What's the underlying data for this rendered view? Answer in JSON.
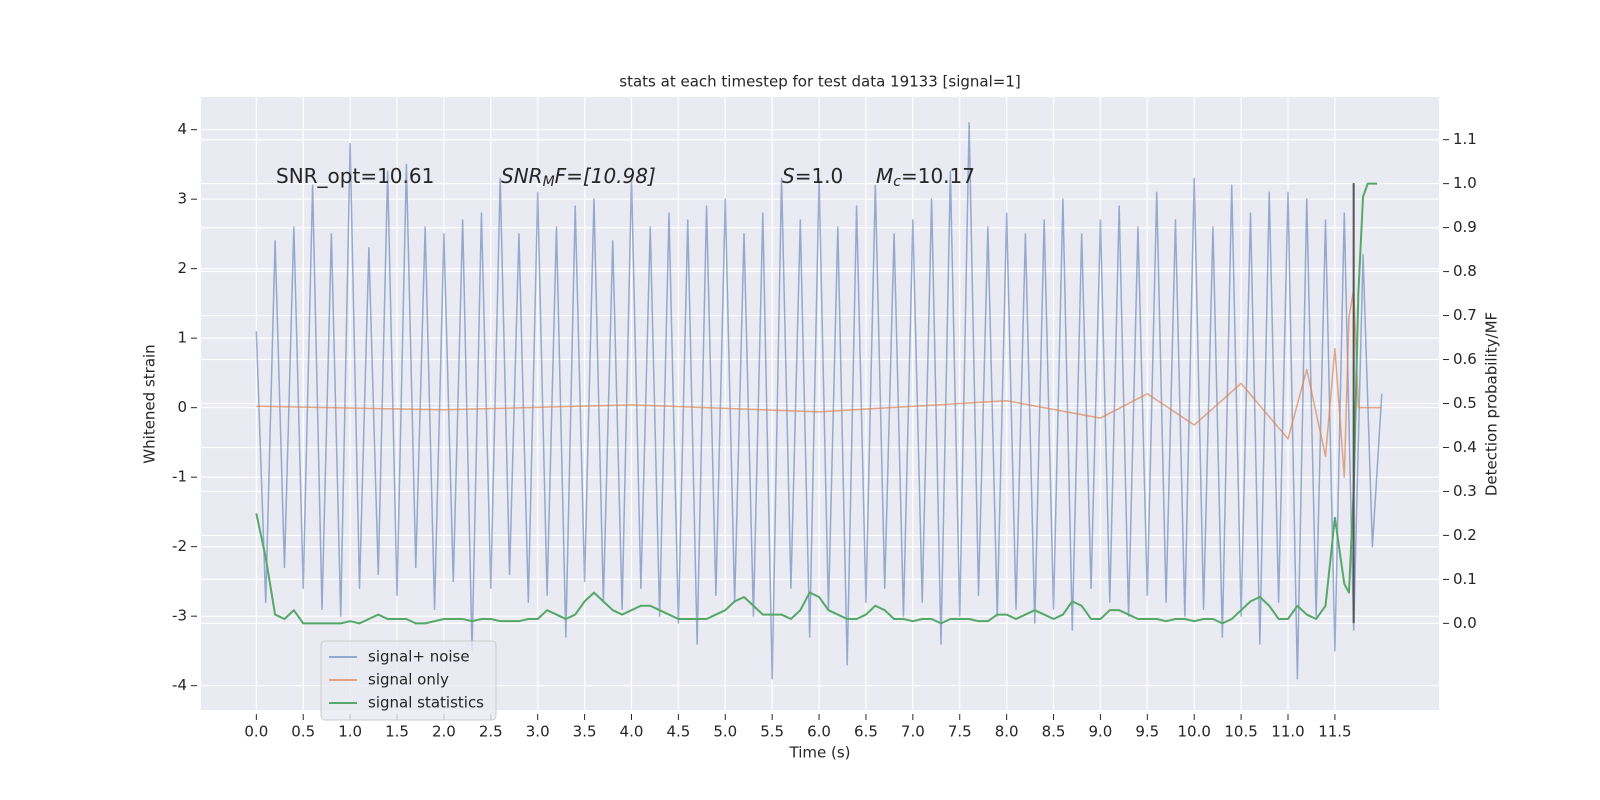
{
  "chart_data": {
    "type": "line",
    "title": "stats at each timestep for test data 19133 [signal=1]",
    "xlabel": "Time (s)",
    "ylabel": "Whitened strain",
    "y2label": "Detection probability/MF",
    "xlim": [
      -0.59,
      12.61
    ],
    "ylim": [
      -4.35,
      4.47
    ],
    "y2lim": [
      -0.197,
      1.197
    ],
    "xticks": [
      {
        "value": 0,
        "label": "0.0"
      },
      0.5,
      {
        "value": 1,
        "label": "1.0"
      },
      1.5,
      {
        "value": 2,
        "label": "2.0"
      },
      2.5,
      {
        "value": 3,
        "label": "3.0"
      },
      3.5,
      {
        "value": 4,
        "label": "4.0"
      },
      4.5,
      {
        "value": 5,
        "label": "5.0"
      },
      5.5,
      {
        "value": 6,
        "label": "6.0"
      },
      6.5,
      {
        "value": 7,
        "label": "7.0"
      },
      7.5,
      {
        "value": 8,
        "label": "8.0"
      },
      8.5,
      {
        "value": 9,
        "label": "9.0"
      },
      9.5,
      {
        "value": 10,
        "label": "10.0"
      },
      10.5,
      {
        "value": 11,
        "label": "11.0"
      },
      11.5
    ],
    "yticks": [
      -4,
      -3,
      -2,
      -1,
      0,
      1,
      2,
      3,
      4
    ],
    "y2ticks": [
      {
        "value": 0,
        "label": "0.0"
      },
      0.1,
      0.2,
      0.3,
      0.4,
      0.5,
      0.6,
      0.7,
      0.8,
      0.9,
      {
        "value": 1,
        "label": "1.0"
      },
      1.1
    ],
    "grid": true,
    "legend": "lower left",
    "annotations": [
      {
        "parts": [
          "SNR_opt=10.61"
        ]
      },
      {
        "parts": [
          "SNR",
          "M",
          "F=[10.98]"
        ]
      },
      {
        "parts": [
          "S",
          "=1.0"
        ]
      },
      {
        "parts": [
          "M",
          "c",
          "=10.17"
        ]
      }
    ],
    "vlines": [
      {
        "x": 11.7,
        "ymin": -3.1,
        "ymax": 3.23,
        "color": "#555555"
      }
    ],
    "series": [
      {
        "name": "signal+ noise",
        "color": "#4c72b0",
        "alpha": 0.55,
        "x": [
          0,
          0.1,
          0.2,
          0.3,
          0.4,
          0.5,
          0.6,
          0.7,
          0.8,
          0.9,
          1,
          1.1,
          1.2,
          1.3,
          1.4,
          1.5,
          1.6,
          1.7,
          1.8,
          1.9,
          2,
          2.1,
          2.2,
          2.3,
          2.4,
          2.5,
          2.6,
          2.7,
          2.8,
          2.9,
          3,
          3.1,
          3.2,
          3.3,
          3.4,
          3.5,
          3.6,
          3.7,
          3.8,
          3.9,
          4,
          4.1,
          4.2,
          4.3,
          4.4,
          4.5,
          4.6,
          4.7,
          4.8,
          4.9,
          5,
          5.1,
          5.2,
          5.3,
          5.4,
          5.5,
          5.6,
          5.7,
          5.8,
          5.9,
          6,
          6.1,
          6.2,
          6.3,
          6.4,
          6.5,
          6.6,
          6.7,
          6.8,
          6.9,
          7,
          7.1,
          7.2,
          7.3,
          7.4,
          7.5,
          7.6,
          7.7,
          7.8,
          7.9,
          8,
          8.1,
          8.2,
          8.3,
          8.4,
          8.5,
          8.6,
          8.7,
          8.8,
          8.9,
          9,
          9.1,
          9.2,
          9.3,
          9.4,
          9.5,
          9.6,
          9.7,
          9.8,
          9.9,
          10,
          10.1,
          10.2,
          10.3,
          10.4,
          10.5,
          10.6,
          10.7,
          10.8,
          10.9,
          11,
          11.1,
          11.2,
          11.3,
          11.4,
          11.5,
          11.6,
          11.7,
          11.8,
          11.9,
          12
        ],
        "values": [
          1.1,
          -2.8,
          2.4,
          -2.3,
          2.6,
          -2.6,
          3.2,
          -2.9,
          2.5,
          -3.0,
          3.8,
          -2.6,
          2.3,
          -2.4,
          3.4,
          -2.7,
          3.5,
          -2.3,
          2.6,
          -2.9,
          2.5,
          -2.5,
          2.7,
          -3.5,
          2.8,
          -2.6,
          3.3,
          -2.4,
          2.5,
          -2.8,
          3.1,
          -2.7,
          2.6,
          -3.3,
          2.9,
          -2.5,
          3.0,
          -2.8,
          2.4,
          -2.9,
          3.3,
          -2.6,
          2.6,
          -3.0,
          2.8,
          -3.1,
          2.7,
          -3.4,
          2.9,
          -2.7,
          3.0,
          -2.8,
          2.5,
          -3.0,
          2.8,
          -3.9,
          3.3,
          -2.6,
          2.7,
          -3.3,
          3.3,
          -2.9,
          2.6,
          -3.7,
          2.9,
          -2.8,
          3.2,
          -2.6,
          2.5,
          -3.0,
          2.7,
          -2.8,
          3.0,
          -3.4,
          3.4,
          -3.0,
          4.1,
          -2.7,
          2.6,
          -3.0,
          2.8,
          -2.9,
          2.5,
          -3.1,
          2.7,
          -2.9,
          3.0,
          -3.2,
          2.5,
          -2.6,
          2.7,
          -2.8,
          2.9,
          -3.0,
          2.6,
          -2.7,
          3.1,
          -2.8,
          2.7,
          -3.0,
          3.3,
          -2.9,
          2.6,
          -3.3,
          3.2,
          -3.0,
          2.8,
          -3.4,
          3.1,
          -2.8,
          3.1,
          -3.9,
          3.0,
          -3.0,
          2.7,
          -3.5,
          2.8,
          -3.2,
          2.2,
          -2.0,
          0.2
        ]
      },
      {
        "name": "signal only",
        "color": "#dd8452",
        "alpha": 0.7,
        "x": [
          0,
          2,
          4,
          6,
          8,
          9,
          9.5,
          10,
          10.5,
          11,
          11.2,
          11.4,
          11.5,
          11.6,
          11.65,
          11.7,
          11.75,
          12
        ],
        "values": [
          0.02,
          -0.03,
          0.04,
          -0.06,
          0.1,
          -0.15,
          0.2,
          -0.25,
          0.35,
          -0.45,
          0.55,
          -0.7,
          0.85,
          -1.0,
          1.3,
          1.7,
          0,
          0
        ]
      },
      {
        "name": "signal statistics",
        "color": "#55a868",
        "alpha": 1,
        "axis": "y2",
        "x": [
          0,
          0.1,
          0.2,
          0.3,
          0.4,
          0.5,
          0.6,
          0.7,
          0.8,
          0.9,
          1,
          1.1,
          1.2,
          1.3,
          1.4,
          1.5,
          1.6,
          1.7,
          1.8,
          1.9,
          2,
          2.1,
          2.2,
          2.3,
          2.4,
          2.5,
          2.6,
          2.7,
          2.8,
          2.9,
          3,
          3.1,
          3.2,
          3.3,
          3.4,
          3.5,
          3.6,
          3.7,
          3.8,
          3.9,
          4,
          4.1,
          4.2,
          4.3,
          4.4,
          4.5,
          4.6,
          4.7,
          4.8,
          4.9,
          5,
          5.1,
          5.2,
          5.3,
          5.4,
          5.5,
          5.6,
          5.7,
          5.8,
          5.9,
          6,
          6.1,
          6.2,
          6.3,
          6.4,
          6.5,
          6.6,
          6.7,
          6.8,
          6.9,
          7,
          7.1,
          7.2,
          7.3,
          7.4,
          7.5,
          7.6,
          7.7,
          7.8,
          7.9,
          8,
          8.1,
          8.2,
          8.3,
          8.4,
          8.5,
          8.6,
          8.7,
          8.8,
          8.9,
          9,
          9.1,
          9.2,
          9.3,
          9.4,
          9.5,
          9.6,
          9.7,
          9.8,
          9.9,
          10,
          10.1,
          10.2,
          10.3,
          10.4,
          10.5,
          10.6,
          10.7,
          10.8,
          10.9,
          11,
          11.1,
          11.2,
          11.3,
          11.4,
          11.5,
          11.6,
          11.65,
          11.7,
          11.75,
          11.8,
          11.85,
          11.9,
          11.95
        ],
        "values": [
          0.25,
          0.15,
          0.02,
          0.01,
          0.03,
          0,
          0,
          0,
          0,
          0,
          0.005,
          0,
          0.01,
          0.02,
          0.01,
          0.01,
          0.01,
          0,
          0,
          0.005,
          0.01,
          0.01,
          0.01,
          0.005,
          0.01,
          0.01,
          0.005,
          0.005,
          0.005,
          0.01,
          0.01,
          0.03,
          0.02,
          0.01,
          0.02,
          0.05,
          0.07,
          0.05,
          0.03,
          0.02,
          0.03,
          0.04,
          0.04,
          0.03,
          0.02,
          0.01,
          0.01,
          0.01,
          0.01,
          0.02,
          0.03,
          0.05,
          0.06,
          0.04,
          0.02,
          0.02,
          0.02,
          0.01,
          0.03,
          0.07,
          0.06,
          0.03,
          0.02,
          0.01,
          0.01,
          0.02,
          0.04,
          0.03,
          0.01,
          0.01,
          0.005,
          0.01,
          0.01,
          0,
          0.01,
          0.01,
          0.01,
          0.005,
          0.005,
          0.02,
          0.02,
          0.01,
          0.02,
          0.03,
          0.02,
          0.01,
          0.02,
          0.05,
          0.04,
          0.01,
          0.01,
          0.03,
          0.03,
          0.02,
          0.01,
          0.01,
          0.01,
          0.005,
          0.01,
          0.01,
          0.005,
          0.01,
          0.01,
          0,
          0.01,
          0.03,
          0.05,
          0.06,
          0.04,
          0.01,
          0.01,
          0.04,
          0.02,
          0.01,
          0.04,
          0.24,
          0.09,
          0.07,
          0.3,
          0.75,
          0.97,
          1.0,
          1.0,
          1.0
        ]
      }
    ]
  }
}
